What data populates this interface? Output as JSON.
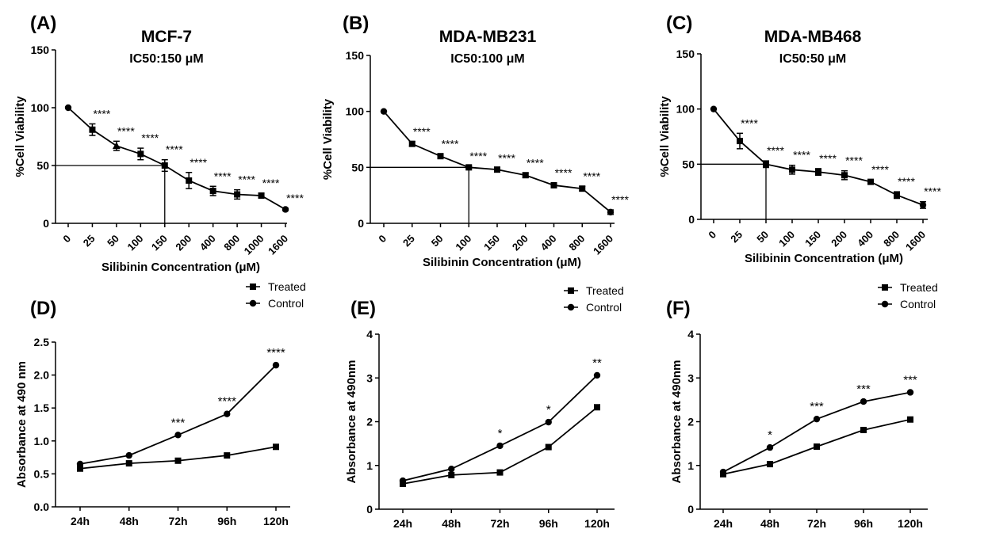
{
  "figure": {
    "legend_treated": "Treated",
    "legend_control": "Control"
  },
  "chart_data": [
    {
      "panel": "(A)",
      "type": "line",
      "title": "MCF-7",
      "subtitle": "IC50:150 μM",
      "xlabel": "Silibinin Concentration (μM)",
      "ylabel": "%Cell Viability",
      "categories": [
        "0",
        "25",
        "50",
        "100",
        "150",
        "200",
        "400",
        "800",
        "1000",
        "1600"
      ],
      "values": [
        100,
        81,
        67,
        60,
        50,
        37,
        28,
        25,
        24,
        12
      ],
      "errors": [
        0,
        5,
        4,
        5,
        5,
        7,
        4,
        4,
        2,
        1
      ],
      "significance": [
        "",
        "****",
        "****",
        "****",
        "****",
        "****",
        "****",
        "****",
        "****",
        "****"
      ],
      "ic50_index": 4,
      "ic50_value": 50,
      "yticks": [
        "0",
        "50",
        "100",
        "150"
      ],
      "ylim": [
        0,
        150
      ]
    },
    {
      "panel": "(B)",
      "type": "line",
      "title": "MDA-MB231",
      "subtitle": "IC50:100 μM",
      "xlabel": "Silibinin Concentration (μM)",
      "ylabel": "%Cell Viability",
      "categories": [
        "0",
        "25",
        "50",
        "100",
        "150",
        "200",
        "400",
        "800",
        "1600"
      ],
      "values": [
        100,
        71,
        60,
        50,
        48,
        43,
        34,
        31,
        10
      ],
      "errors": [
        0,
        2,
        2,
        1,
        1,
        2,
        2,
        2,
        2
      ],
      "significance": [
        "",
        "****",
        "****",
        "****",
        "****",
        "****",
        "****",
        "****",
        "****"
      ],
      "ic50_index": 3,
      "ic50_value": 50,
      "yticks": [
        "0",
        "50",
        "100",
        "150"
      ],
      "ylim": [
        0,
        150
      ]
    },
    {
      "panel": "(C)",
      "type": "line",
      "title": "MDA-MB468",
      "subtitle": "IC50:50 μM",
      "xlabel": "Silibinin Concentration (μM)",
      "ylabel": "%Cell Viability",
      "categories": [
        "0",
        "25",
        "50",
        "100",
        "150",
        "200",
        "400",
        "800",
        "1600"
      ],
      "values": [
        100,
        71,
        50,
        45,
        43,
        40,
        34,
        22,
        13
      ],
      "errors": [
        0,
        7,
        3,
        4,
        3,
        4,
        2,
        3,
        3
      ],
      "significance": [
        "",
        "****",
        "****",
        "****",
        "****",
        "****",
        "****",
        "****",
        "****"
      ],
      "ic50_index": 2,
      "ic50_value": 50,
      "yticks": [
        "0",
        "50",
        "100",
        "150"
      ],
      "ylim": [
        0,
        150
      ]
    },
    {
      "panel": "(D)",
      "type": "line",
      "title": "",
      "xlabel": "",
      "ylabel": "Absorbance at 490 nm",
      "categories": [
        "24h",
        "48h",
        "72h",
        "96h",
        "120h"
      ],
      "series": [
        {
          "name": "Treated",
          "values": [
            0.58,
            0.66,
            0.7,
            0.78,
            0.91
          ]
        },
        {
          "name": "Control",
          "values": [
            0.65,
            0.78,
            1.09,
            1.41,
            2.15
          ]
        }
      ],
      "significance": [
        "",
        "",
        "***",
        "****",
        "****"
      ],
      "yticks": [
        "0.0",
        "0.5",
        "1.0",
        "1.5",
        "2.0",
        "2.5"
      ],
      "ylim": [
        0,
        2.5
      ]
    },
    {
      "panel": "(E)",
      "type": "line",
      "title": "",
      "xlabel": "",
      "ylabel": "Absorbance at 490nm",
      "categories": [
        "24h",
        "48h",
        "72h",
        "96h",
        "120h"
      ],
      "series": [
        {
          "name": "Treated",
          "values": [
            0.58,
            0.78,
            0.84,
            1.42,
            2.33
          ]
        },
        {
          "name": "Control",
          "values": [
            0.65,
            0.92,
            1.45,
            1.99,
            3.06
          ]
        }
      ],
      "significance": [
        "",
        "",
        "*",
        "*",
        "**"
      ],
      "yticks": [
        "0",
        "1",
        "2",
        "3",
        "4"
      ],
      "ylim": [
        0,
        4
      ]
    },
    {
      "panel": "(F)",
      "type": "line",
      "title": "",
      "xlabel": "",
      "ylabel": "Absorbance at 490nm",
      "categories": [
        "24h",
        "48h",
        "72h",
        "96h",
        "120h"
      ],
      "series": [
        {
          "name": "Treated",
          "values": [
            0.8,
            1.03,
            1.43,
            1.81,
            2.05
          ]
        },
        {
          "name": "Control",
          "values": [
            0.85,
            1.41,
            2.06,
            2.46,
            2.67
          ]
        }
      ],
      "significance": [
        "",
        "*",
        "***",
        "***",
        "***"
      ],
      "yticks": [
        "0",
        "1",
        "2",
        "3",
        "4"
      ],
      "ylim": [
        0,
        4
      ]
    }
  ]
}
